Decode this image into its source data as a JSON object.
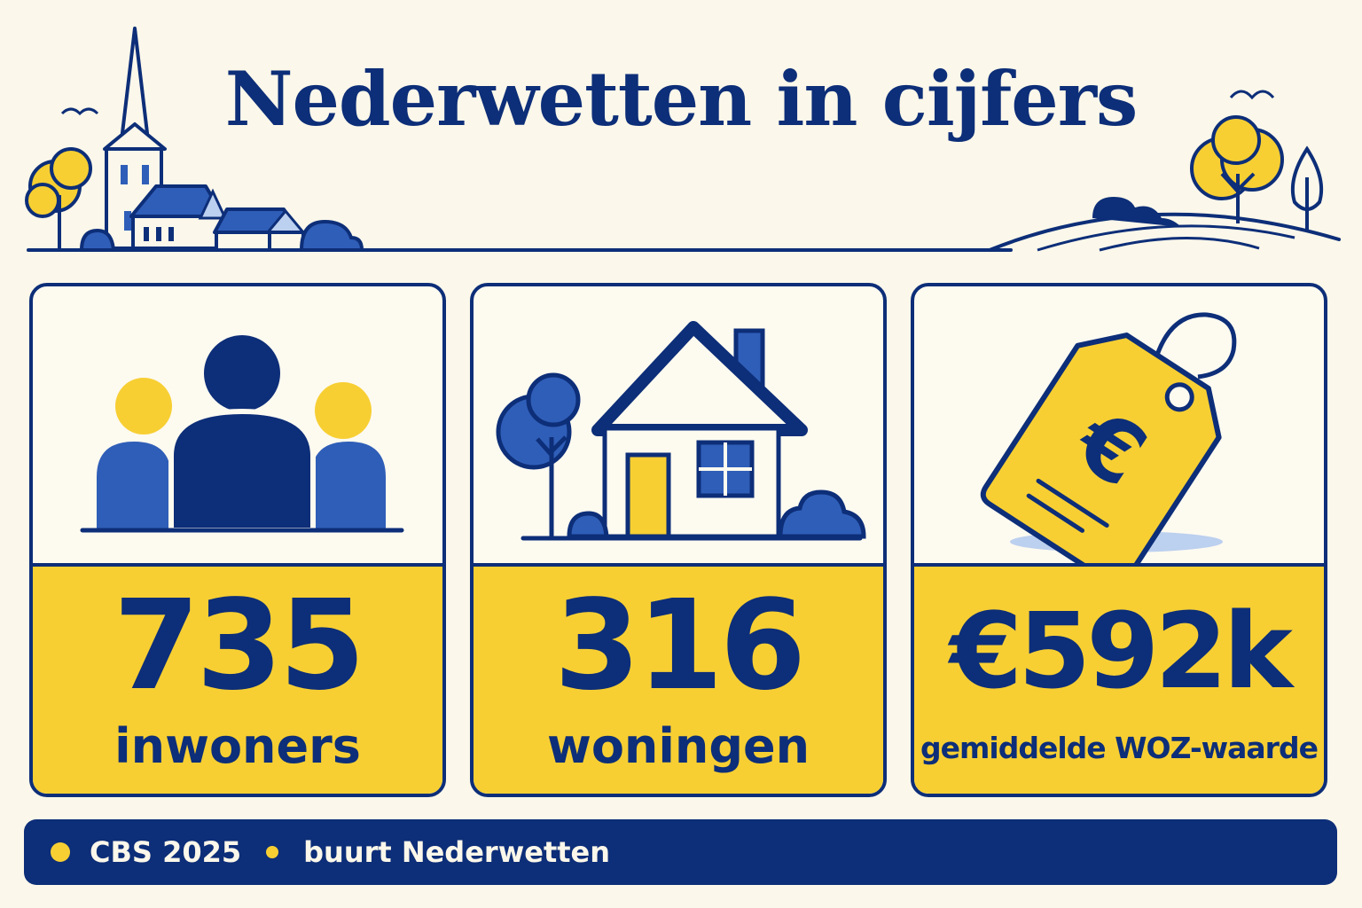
{
  "title": "Nederwetten in cijfers",
  "colors": {
    "navy": "#0d2e78",
    "blue": "#2f5eb8",
    "yellow": "#f7cf33",
    "cream": "#fbf7ea"
  },
  "stats": [
    {
      "icon": "people-icon",
      "value": "735",
      "label": "inwoners"
    },
    {
      "icon": "house-icon",
      "value": "316",
      "label": "woningen"
    },
    {
      "icon": "price-tag-euro-icon",
      "value": "€592k",
      "label": "gemiddelde WOZ-waarde"
    }
  ],
  "footer": {
    "source": "CBS 2025",
    "area": "buurt Nederwetten"
  }
}
